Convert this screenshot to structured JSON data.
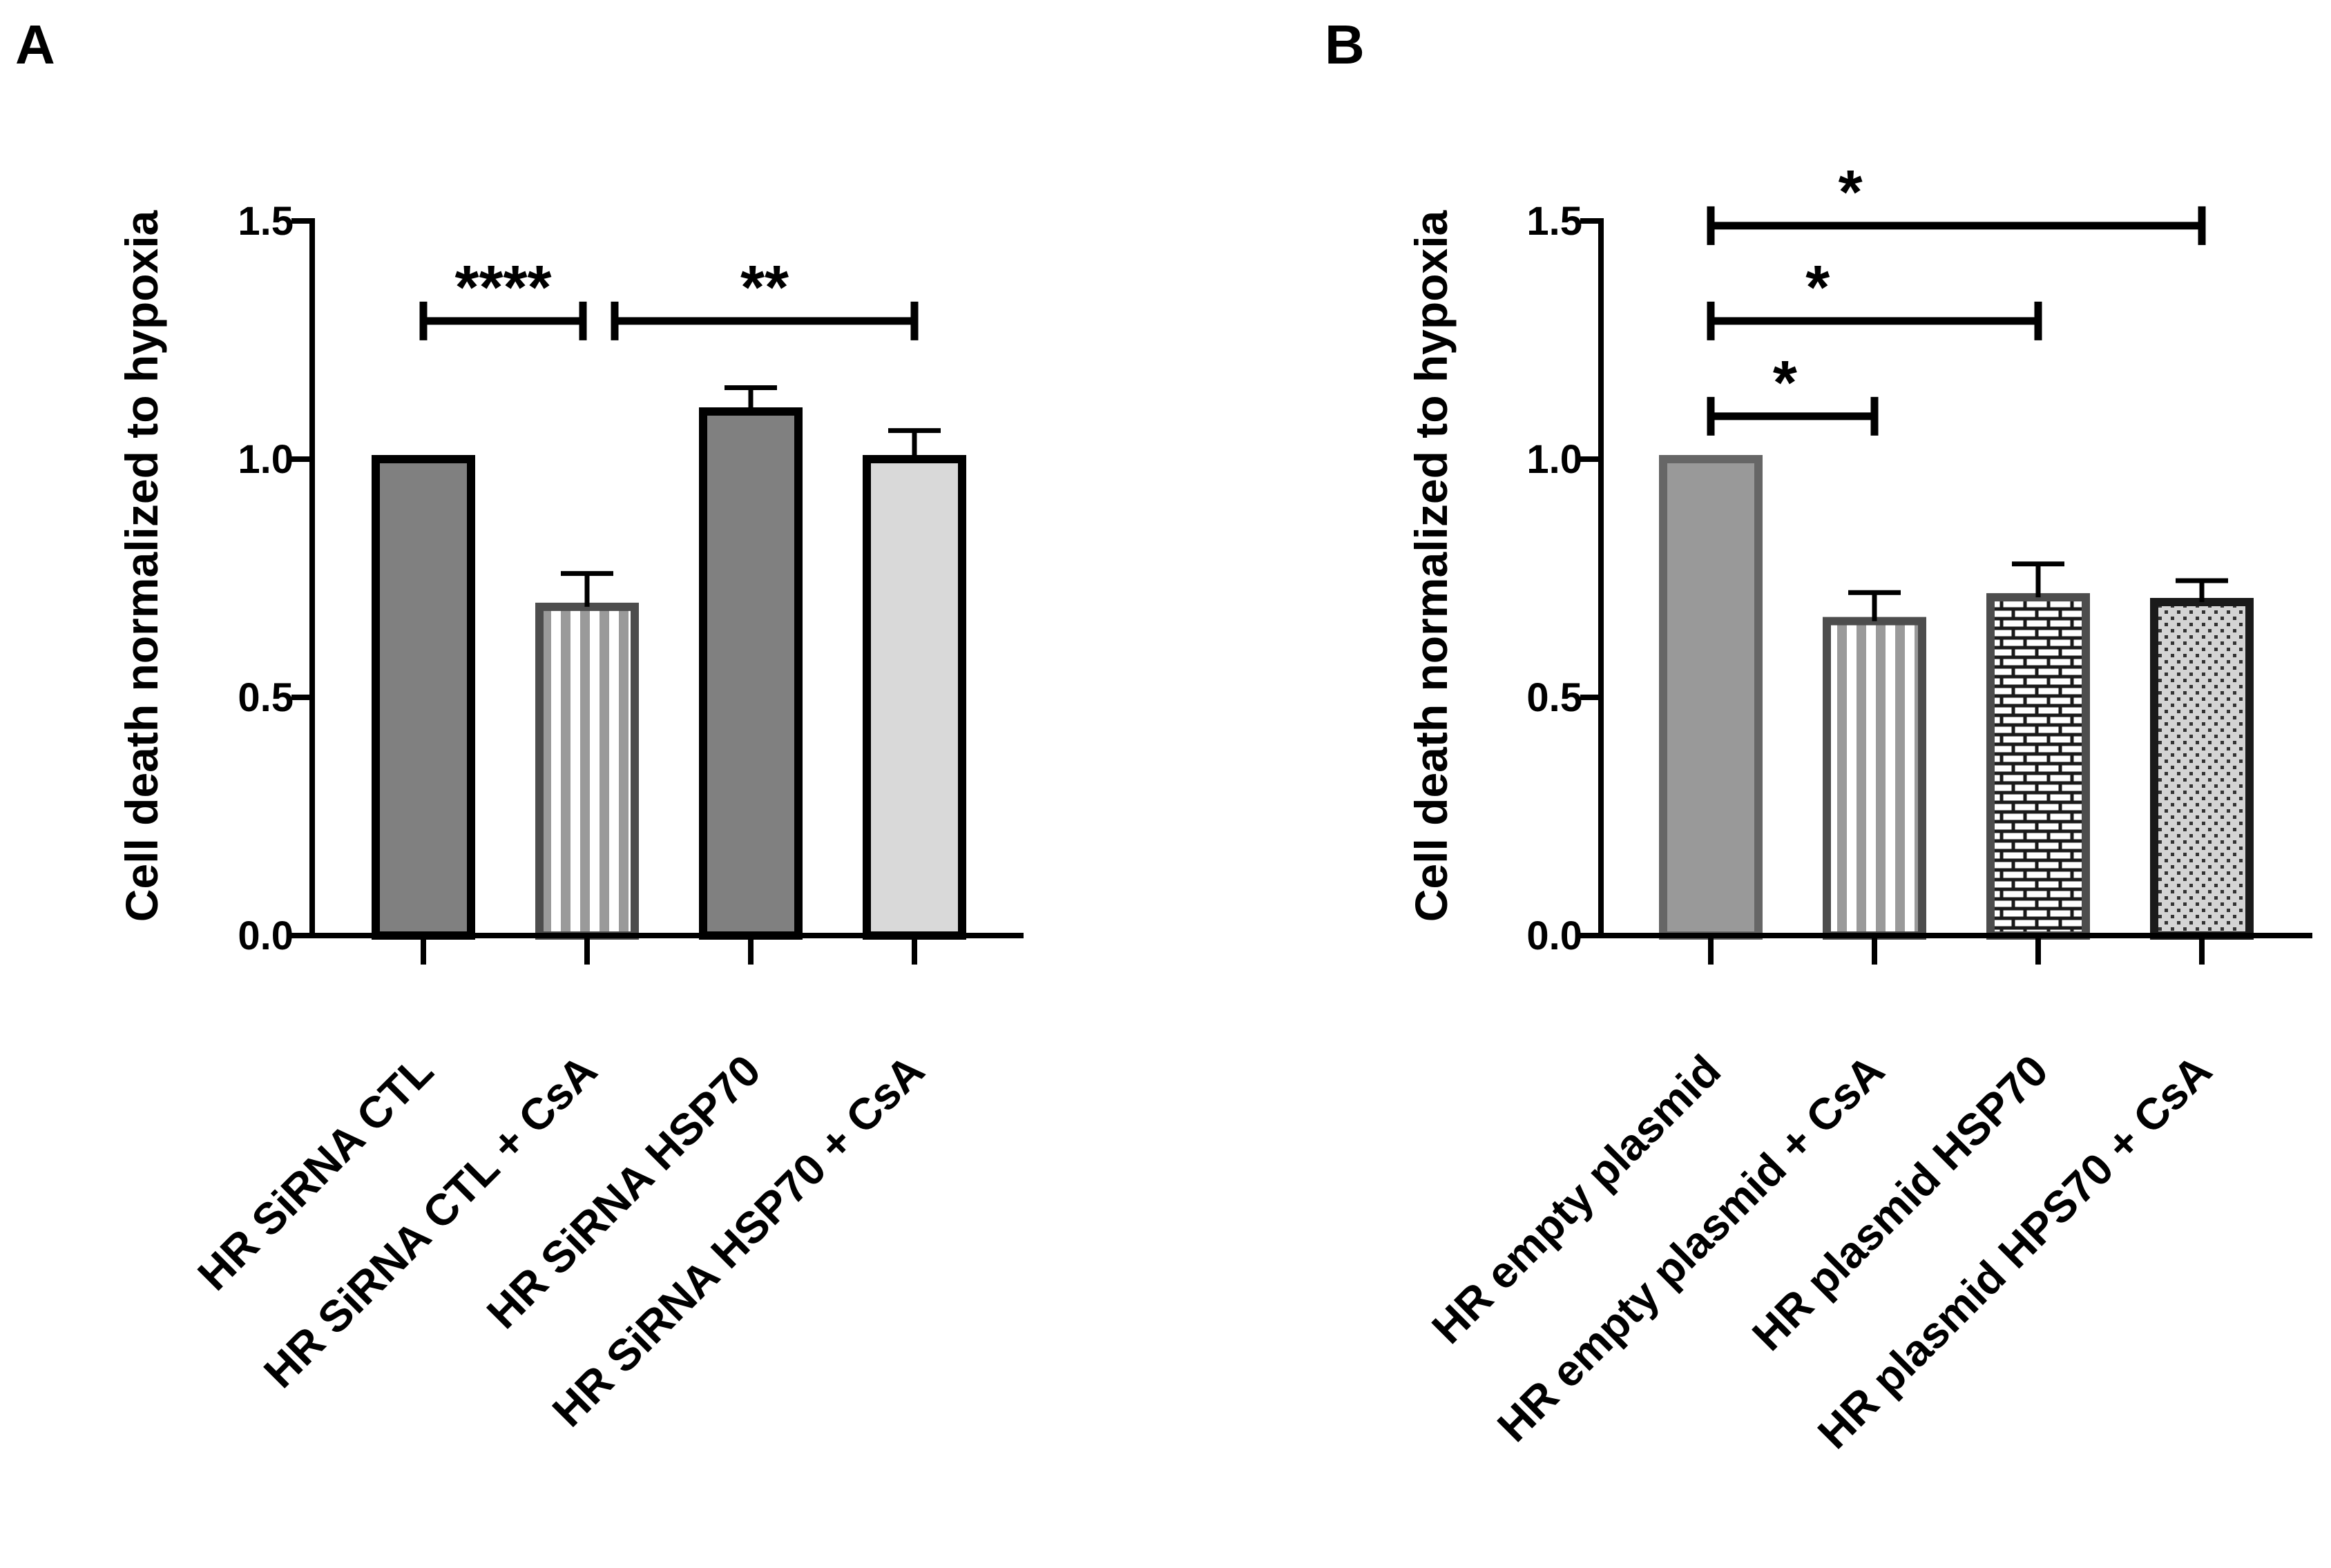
{
  "chart_data": [
    {
      "type": "bar",
      "panel": "A",
      "title": "",
      "xlabel": "",
      "ylabel": "Cell death normalized to hypoxia",
      "ylim": [
        0,
        1.5
      ],
      "yticks": [
        "0.0",
        "0.5",
        "1.0",
        "1.5"
      ],
      "categories": [
        "HR SiRNA CTL",
        "HR SiRNA CTL + CsA",
        "HR SiRNA HSP70",
        "HR SiRNA HSP70 + CsA"
      ],
      "values": [
        1.0,
        0.69,
        1.1,
        1.0
      ],
      "errors": [
        0,
        0.07,
        0.05,
        0.06
      ],
      "fills": [
        "#808080",
        "stripes",
        "#808080",
        "#d9d9d9"
      ],
      "borders": [
        "#000000",
        "#4d4d4d",
        "#000000",
        "#000000"
      ],
      "significance": [
        {
          "from": 0,
          "to": 1,
          "label": "****",
          "y": 1.29
        },
        {
          "from": 1,
          "to": 3,
          "label": "**",
          "y": 1.29
        }
      ]
    },
    {
      "type": "bar",
      "panel": "B",
      "title": "",
      "xlabel": "",
      "ylabel": "Cell death normalized to hypoxia",
      "ylim": [
        0,
        1.5
      ],
      "yticks": [
        "0.0",
        "0.5",
        "1.0",
        "1.5"
      ],
      "categories": [
        "HR empty plasmid",
        "HR empty plasmid + CsA",
        "HR plasmid HSP70",
        "HR plasmid HPS70 + CsA"
      ],
      "values": [
        1.0,
        0.66,
        0.71,
        0.7
      ],
      "errors": [
        0,
        0.06,
        0.07,
        0.045
      ],
      "fills": [
        "#999999",
        "stripes",
        "bricks",
        "dots"
      ],
      "borders": [
        "#666666",
        "#4d4d4d",
        "#4d4d4d",
        "#1a1a1a"
      ],
      "significance": [
        {
          "from": 0,
          "to": 1,
          "label": "*",
          "y": 1.09
        },
        {
          "from": 0,
          "to": 2,
          "label": "*",
          "y": 1.29
        },
        {
          "from": 0,
          "to": 3,
          "label": "*",
          "y": 1.49
        }
      ]
    }
  ]
}
